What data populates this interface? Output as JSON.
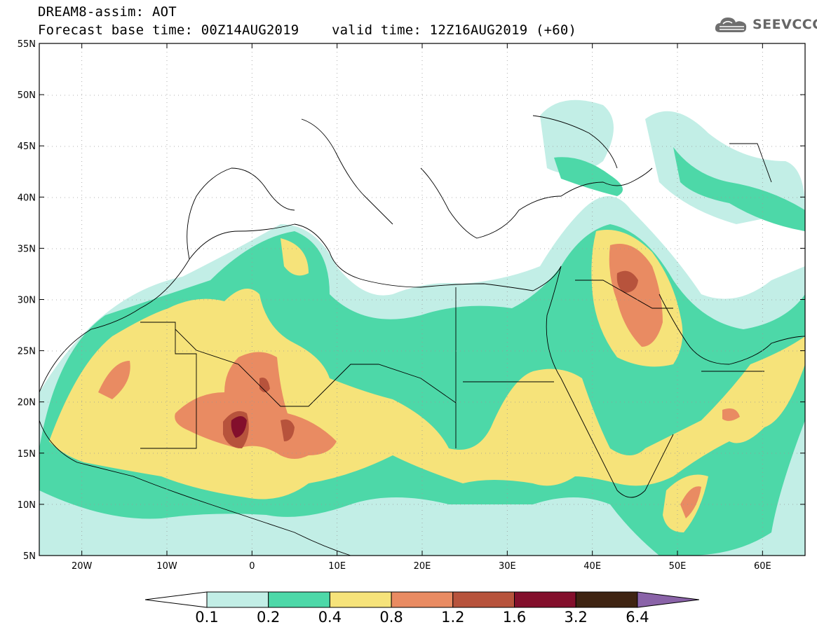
{
  "header": {
    "title": "DREAM8-assim: AOT",
    "base_time_label": "Forecast base time: 00Z14AUG2019",
    "valid_time_label": "valid time: 12Z16AUG2019 (+60)"
  },
  "logo": {
    "text": "SEEVCCC",
    "icon": "cloud-icon"
  },
  "map": {
    "lon_range": [
      -25,
      65
    ],
    "lat_range": [
      5,
      55
    ],
    "lat_ticks": [
      "5N",
      "10N",
      "15N",
      "20N",
      "25N",
      "30N",
      "35N",
      "40N",
      "45N",
      "50N",
      "55N"
    ],
    "lon_ticks": [
      "20W",
      "10W",
      "0",
      "10E",
      "20E",
      "30E",
      "40E",
      "50E",
      "60E"
    ],
    "grid": "dotted"
  },
  "colorbar": {
    "levels": [
      "0.1",
      "0.2",
      "0.4",
      "0.8",
      "1.2",
      "1.6",
      "3.2",
      "6.4"
    ],
    "colors": [
      "#c2eee6",
      "#4dd8a8",
      "#f6e37a",
      "#e98b62",
      "#b7533c",
      "#830f2c",
      "#3f2412"
    ],
    "under_color": "#ffffff",
    "over_color": "#8a63a8"
  }
}
